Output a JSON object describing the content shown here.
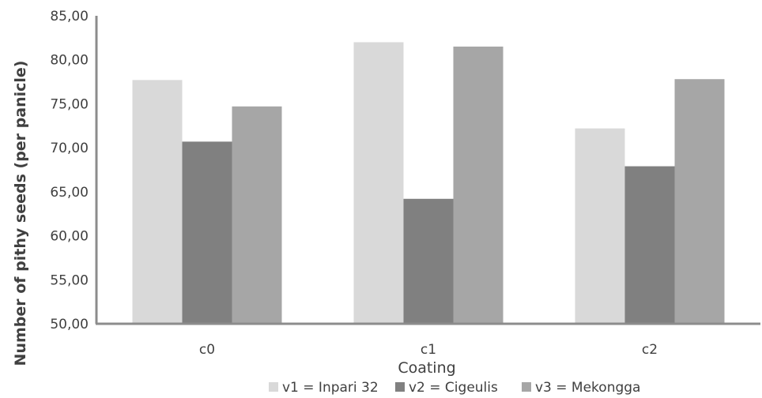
{
  "chart_data": {
    "type": "bar",
    "title": "",
    "xlabel": "Coating",
    "ylabel": "Number of pithy seeds (per panicle)",
    "categories": [
      "c0",
      "c1",
      "c2"
    ],
    "ylim": [
      50,
      85
    ],
    "y_ticks": [
      "50,00",
      "55,00",
      "60,00",
      "65,00",
      "70,00",
      "75,00",
      "80,00",
      "85,00"
    ],
    "y_tick_values": [
      50,
      55,
      60,
      65,
      70,
      75,
      80,
      85
    ],
    "grid": false,
    "legend_position": "bottom",
    "series": [
      {
        "name": "v1 = Inpari 32",
        "color": "#d9d9d9",
        "values": [
          77.7,
          82.0,
          72.2
        ]
      },
      {
        "name": "v2 = Cigeulis",
        "color": "#808080",
        "values": [
          70.7,
          64.2,
          67.9
        ]
      },
      {
        "name": "v3 = Mekongga",
        "color": "#a6a6a6",
        "values": [
          74.7,
          81.5,
          77.8
        ]
      }
    ],
    "axis_color": "#8c8c8c"
  }
}
